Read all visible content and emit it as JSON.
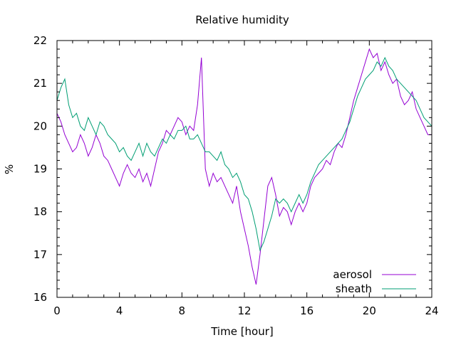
{
  "chart_data": {
    "type": "line",
    "title": "Relative humidity",
    "xlabel": "Time [hour]",
    "ylabel": "%",
    "xlim": [
      0,
      24
    ],
    "ylim": [
      16,
      22
    ],
    "xticks": [
      0,
      4,
      8,
      12,
      16,
      20,
      24
    ],
    "yticks": [
      16,
      17,
      18,
      19,
      20,
      21,
      22
    ],
    "grid": false,
    "legend_position": "bottom-right",
    "series": [
      {
        "name": "aerosol",
        "color": "#9400d3",
        "x": [
          0,
          0.25,
          0.5,
          0.75,
          1,
          1.25,
          1.5,
          1.75,
          2,
          2.25,
          2.5,
          2.75,
          3,
          3.25,
          3.5,
          3.75,
          4,
          4.25,
          4.5,
          4.75,
          5,
          5.25,
          5.5,
          5.75,
          6,
          6.25,
          6.5,
          6.75,
          7,
          7.25,
          7.5,
          7.75,
          8,
          8.25,
          8.5,
          8.75,
          9,
          9.25,
          9.5,
          9.75,
          10,
          10.25,
          10.5,
          10.75,
          11,
          11.25,
          11.5,
          11.75,
          12,
          12.25,
          12.5,
          12.75,
          13,
          13.25,
          13.5,
          13.75,
          14,
          14.25,
          14.5,
          14.75,
          15,
          15.25,
          15.5,
          15.75,
          16,
          16.25,
          16.5,
          16.75,
          17,
          17.25,
          17.5,
          17.75,
          18,
          18.25,
          18.5,
          18.75,
          19,
          19.25,
          19.5,
          19.75,
          20,
          20.25,
          20.5,
          20.75,
          21,
          21.25,
          21.5,
          21.75,
          22,
          22.25,
          22.5,
          22.75,
          23,
          23.25,
          23.5,
          23.75,
          24
        ],
        "values": [
          20.3,
          20.1,
          19.8,
          19.6,
          19.4,
          19.5,
          19.8,
          19.6,
          19.3,
          19.5,
          19.8,
          19.6,
          19.3,
          19.2,
          19.0,
          18.8,
          18.6,
          18.9,
          19.1,
          18.9,
          18.8,
          19.0,
          18.7,
          18.9,
          18.6,
          19.0,
          19.4,
          19.6,
          19.9,
          19.8,
          20.0,
          20.2,
          20.1,
          19.8,
          20.0,
          19.9,
          20.5,
          21.6,
          19.0,
          18.6,
          18.9,
          18.7,
          18.8,
          18.6,
          18.4,
          18.2,
          18.6,
          18.0,
          17.6,
          17.2,
          16.7,
          16.3,
          17.0,
          17.8,
          18.6,
          18.8,
          18.4,
          17.9,
          18.1,
          18.0,
          17.7,
          18.0,
          18.2,
          18.0,
          18.2,
          18.6,
          18.8,
          18.9,
          19.0,
          19.2,
          19.1,
          19.4,
          19.6,
          19.5,
          19.8,
          20.2,
          20.6,
          20.9,
          21.2,
          21.5,
          21.8,
          21.6,
          21.7,
          21.3,
          21.5,
          21.2,
          21.0,
          21.1,
          20.7,
          20.5,
          20.6,
          20.8,
          20.4,
          20.2,
          20.0,
          19.8,
          19.8
        ]
      },
      {
        "name": "sheath",
        "color": "#009e73",
        "x": [
          0,
          0.25,
          0.5,
          0.75,
          1,
          1.25,
          1.5,
          1.75,
          2,
          2.25,
          2.5,
          2.75,
          3,
          3.25,
          3.5,
          3.75,
          4,
          4.25,
          4.5,
          4.75,
          5,
          5.25,
          5.5,
          5.75,
          6,
          6.25,
          6.5,
          6.75,
          7,
          7.25,
          7.5,
          7.75,
          8,
          8.25,
          8.5,
          8.75,
          9,
          9.25,
          9.5,
          9.75,
          10,
          10.25,
          10.5,
          10.75,
          11,
          11.25,
          11.5,
          11.75,
          12,
          12.25,
          12.5,
          12.75,
          13,
          13.25,
          13.5,
          13.75,
          14,
          14.25,
          14.5,
          14.75,
          15,
          15.25,
          15.5,
          15.75,
          16,
          16.25,
          16.5,
          16.75,
          17,
          17.25,
          17.5,
          17.75,
          18,
          18.25,
          18.5,
          18.75,
          19,
          19.25,
          19.5,
          19.75,
          20,
          20.25,
          20.5,
          20.75,
          21,
          21.25,
          21.5,
          21.75,
          22,
          22.25,
          22.5,
          22.75,
          23,
          23.25,
          23.5,
          23.75,
          24
        ],
        "values": [
          20.6,
          20.9,
          21.1,
          20.5,
          20.2,
          20.3,
          20.0,
          19.9,
          20.2,
          20.0,
          19.8,
          20.1,
          20.0,
          19.8,
          19.7,
          19.6,
          19.4,
          19.5,
          19.3,
          19.2,
          19.4,
          19.6,
          19.3,
          19.6,
          19.4,
          19.3,
          19.5,
          19.7,
          19.6,
          19.8,
          19.7,
          19.9,
          19.9,
          20.0,
          19.7,
          19.7,
          19.8,
          19.6,
          19.4,
          19.4,
          19.3,
          19.2,
          19.4,
          19.1,
          19.0,
          18.8,
          18.9,
          18.7,
          18.4,
          18.3,
          18.0,
          17.6,
          17.1,
          17.3,
          17.6,
          17.9,
          18.3,
          18.2,
          18.3,
          18.2,
          18.0,
          18.2,
          18.4,
          18.2,
          18.4,
          18.7,
          18.9,
          19.1,
          19.2,
          19.3,
          19.4,
          19.5,
          19.6,
          19.7,
          19.9,
          20.1,
          20.4,
          20.7,
          20.9,
          21.1,
          21.2,
          21.3,
          21.5,
          21.4,
          21.6,
          21.4,
          21.3,
          21.1,
          21.0,
          20.9,
          20.8,
          20.7,
          20.6,
          20.4,
          20.2,
          20.1,
          20.0
        ]
      }
    ]
  }
}
